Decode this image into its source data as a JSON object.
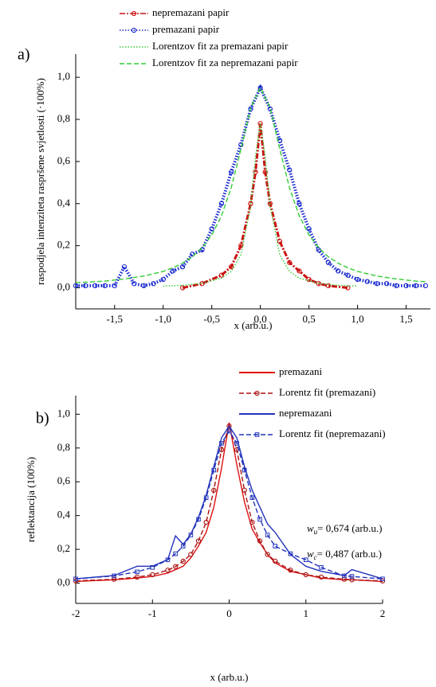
{
  "chart_data": [
    {
      "type": "line",
      "panel_label": "a)",
      "x_label": "x (arb.u.)",
      "y_label": "raspodjela intenziteta raspršene svjetlosti (·100%)",
      "xlim": [
        -1.9,
        1.75
      ],
      "ylim": [
        -0.1,
        1.11
      ],
      "xticks": [
        {
          "value": -1.5,
          "label": "-1,5"
        },
        {
          "value": -1,
          "label": "-1,0"
        },
        {
          "value": -0.5,
          "label": "-0,5"
        },
        {
          "value": 0,
          "label": "0,0"
        },
        {
          "value": 0.5,
          "label": "0,5"
        },
        {
          "value": 1,
          "label": "1,0"
        },
        {
          "value": 1.5,
          "label": "1,5"
        }
      ],
      "yticks": [
        {
          "value": 0,
          "label": "0,0"
        },
        {
          "value": 0.2,
          "label": "0,2"
        },
        {
          "value": 0.4,
          "label": "0,4"
        },
        {
          "value": 0.6,
          "label": "0,6"
        },
        {
          "value": 0.8,
          "label": "0,8"
        },
        {
          "value": 1,
          "label": "1,0"
        }
      ],
      "legend": "top",
      "series": [
        {
          "name": "nepremazani papir",
          "color": "#cc1111",
          "line_style": "dashdot",
          "marker": "circle",
          "line_weight": "heavy",
          "x": [
            -0.8,
            -0.6,
            -0.4,
            -0.3,
            -0.2,
            -0.1,
            -0.05,
            0,
            0.05,
            0.1,
            0.2,
            0.3,
            0.4,
            0.5,
            0.6,
            0.7,
            0.9
          ],
          "values": [
            0.0,
            0.02,
            0.06,
            0.1,
            0.2,
            0.4,
            0.55,
            0.78,
            0.55,
            0.4,
            0.22,
            0.12,
            0.08,
            0.04,
            0.02,
            0.01,
            0.0
          ]
        },
        {
          "name": "premazani papir",
          "color": "#1a2ad0",
          "line_style": "dotted",
          "marker": "circle",
          "line_weight": "heavy",
          "x": [
            -1.9,
            -1.8,
            -1.7,
            -1.6,
            -1.5,
            -1.4,
            -1.3,
            -1.2,
            -1.1,
            -1,
            -0.9,
            -0.8,
            -0.7,
            -0.6,
            -0.5,
            -0.4,
            -0.3,
            -0.2,
            -0.1,
            0,
            0.1,
            0.2,
            0.3,
            0.4,
            0.5,
            0.6,
            0.7,
            0.8,
            0.9,
            1,
            1.1,
            1.2,
            1.3,
            1.4,
            1.5,
            1.6,
            1.7
          ],
          "values": [
            0.01,
            0.01,
            0.01,
            0.01,
            0.01,
            0.1,
            0.02,
            0.01,
            0.02,
            0.04,
            0.08,
            0.1,
            0.16,
            0.18,
            0.28,
            0.4,
            0.55,
            0.68,
            0.85,
            0.95,
            0.85,
            0.7,
            0.56,
            0.4,
            0.28,
            0.18,
            0.12,
            0.08,
            0.06,
            0.04,
            0.03,
            0.02,
            0.02,
            0.01,
            0.01,
            0.01,
            0.01
          ]
        },
        {
          "name": "Lorentzov fit za premazani papir",
          "color": "#33cc33",
          "line_style": "dotted",
          "marker": "none",
          "line_weight": "normal",
          "x": [
            -1,
            -0.8,
            -0.6,
            -0.4,
            -0.3,
            -0.2,
            -0.1,
            -0.05,
            0,
            0.05,
            0.1,
            0.2,
            0.3,
            0.4,
            0.6,
            0.8,
            1
          ],
          "values": [
            0.008,
            0.012,
            0.021,
            0.046,
            0.078,
            0.156,
            0.39,
            0.624,
            0.78,
            0.624,
            0.39,
            0.156,
            0.078,
            0.046,
            0.021,
            0.012,
            0.008
          ]
        },
        {
          "name": "Lorentzov fit za nepremazani papir",
          "color": "#33cc33",
          "line_style": "dashed",
          "marker": "none",
          "line_weight": "normal",
          "x": [
            -1.9,
            -1.6,
            -1.4,
            -1.2,
            -1,
            -0.9,
            -0.8,
            -0.7,
            -0.6,
            -0.5,
            -0.4,
            -0.3,
            -0.2,
            -0.1,
            0,
            0.1,
            0.2,
            0.3,
            0.4,
            0.5,
            0.6,
            0.7,
            0.8,
            0.9,
            1,
            1.2,
            1.4,
            1.6,
            1.7
          ],
          "values": [
            0.024,
            0.032,
            0.042,
            0.056,
            0.078,
            0.095,
            0.117,
            0.147,
            0.19,
            0.251,
            0.342,
            0.475,
            0.658,
            0.855,
            0.95,
            0.855,
            0.658,
            0.475,
            0.342,
            0.251,
            0.19,
            0.147,
            0.117,
            0.095,
            0.078,
            0.056,
            0.042,
            0.032,
            0.029
          ]
        }
      ]
    },
    {
      "type": "line",
      "panel_label": "b)",
      "x_label": "x (arb.u.)",
      "y_label": "reflektancija (100%)",
      "xlim": [
        -2,
        2
      ],
      "ylim": [
        -0.12,
        1.11
      ],
      "xticks": [
        -2,
        -1,
        0,
        1,
        2
      ],
      "yticks": [
        {
          "value": 0,
          "label": "0,0"
        },
        {
          "value": 0.2,
          "label": "0,2"
        },
        {
          "value": 0.4,
          "label": "0,4"
        },
        {
          "value": 0.6,
          "label": "0,6"
        },
        {
          "value": 0.8,
          "label": "0,8"
        },
        {
          "value": 1,
          "label": "1,0"
        }
      ],
      "legend": "top-right",
      "annotations": [
        {
          "symbol": "w",
          "subscript": "u",
          "text": "= 0,674 (arb.u.)"
        },
        {
          "symbol": "w",
          "subscript": "c",
          "text": "= 0,487 (arb.u.)"
        }
      ],
      "x": [
        -2,
        -1.5,
        -1.2,
        -1,
        -0.8,
        -0.7,
        -0.6,
        -0.5,
        -0.4,
        -0.3,
        -0.2,
        -0.1,
        0,
        0.1,
        0.2,
        0.3,
        0.4,
        0.5,
        0.6,
        0.8,
        1,
        1.2,
        1.5,
        1.6,
        2
      ],
      "series": [
        {
          "name": "premazani",
          "color": "#dd1111",
          "line_style": "solid",
          "marker": "none",
          "line_weight": "normal",
          "values": [
            0.01,
            0.02,
            0.03,
            0.04,
            0.06,
            0.08,
            0.1,
            0.15,
            0.22,
            0.3,
            0.45,
            0.68,
            0.95,
            0.7,
            0.48,
            0.32,
            0.24,
            0.17,
            0.12,
            0.07,
            0.05,
            0.03,
            0.02,
            0.02,
            0.01
          ]
        },
        {
          "name": "Lorentz fit (premazani)",
          "color": "#aa1111",
          "line_style": "dashed",
          "marker": "circle",
          "line_weight": "normal",
          "values": [
            0.013,
            0.023,
            0.036,
            0.05,
            0.077,
            0.098,
            0.13,
            0.17,
            0.25,
            0.36,
            0.55,
            0.79,
            0.93,
            0.79,
            0.55,
            0.36,
            0.25,
            0.17,
            0.13,
            0.077,
            0.05,
            0.036,
            0.023,
            0.02,
            0.013
          ]
        },
        {
          "name": "nepremazani",
          "color": "#2233bb",
          "line_style": "solid",
          "marker": "none",
          "line_weight": "normal",
          "values": [
            0.026,
            0.045,
            0.1,
            0.1,
            0.14,
            0.28,
            0.23,
            0.29,
            0.39,
            0.52,
            0.69,
            0.86,
            0.93,
            0.86,
            0.69,
            0.55,
            0.45,
            0.35,
            0.3,
            0.17,
            0.1,
            0.07,
            0.045,
            0.08,
            0.026
          ]
        },
        {
          "name": "Lorentz fit (nepremazani)",
          "color": "#2233bb",
          "line_style": "dashed",
          "marker": "square",
          "line_weight": "normal",
          "values": [
            0.025,
            0.043,
            0.067,
            0.093,
            0.138,
            0.174,
            0.219,
            0.285,
            0.378,
            0.506,
            0.669,
            0.828,
            0.9,
            0.828,
            0.669,
            0.506,
            0.378,
            0.285,
            0.219,
            0.174,
            0.138,
            0.093,
            0.043,
            0.04,
            0.025
          ]
        }
      ]
    }
  ]
}
